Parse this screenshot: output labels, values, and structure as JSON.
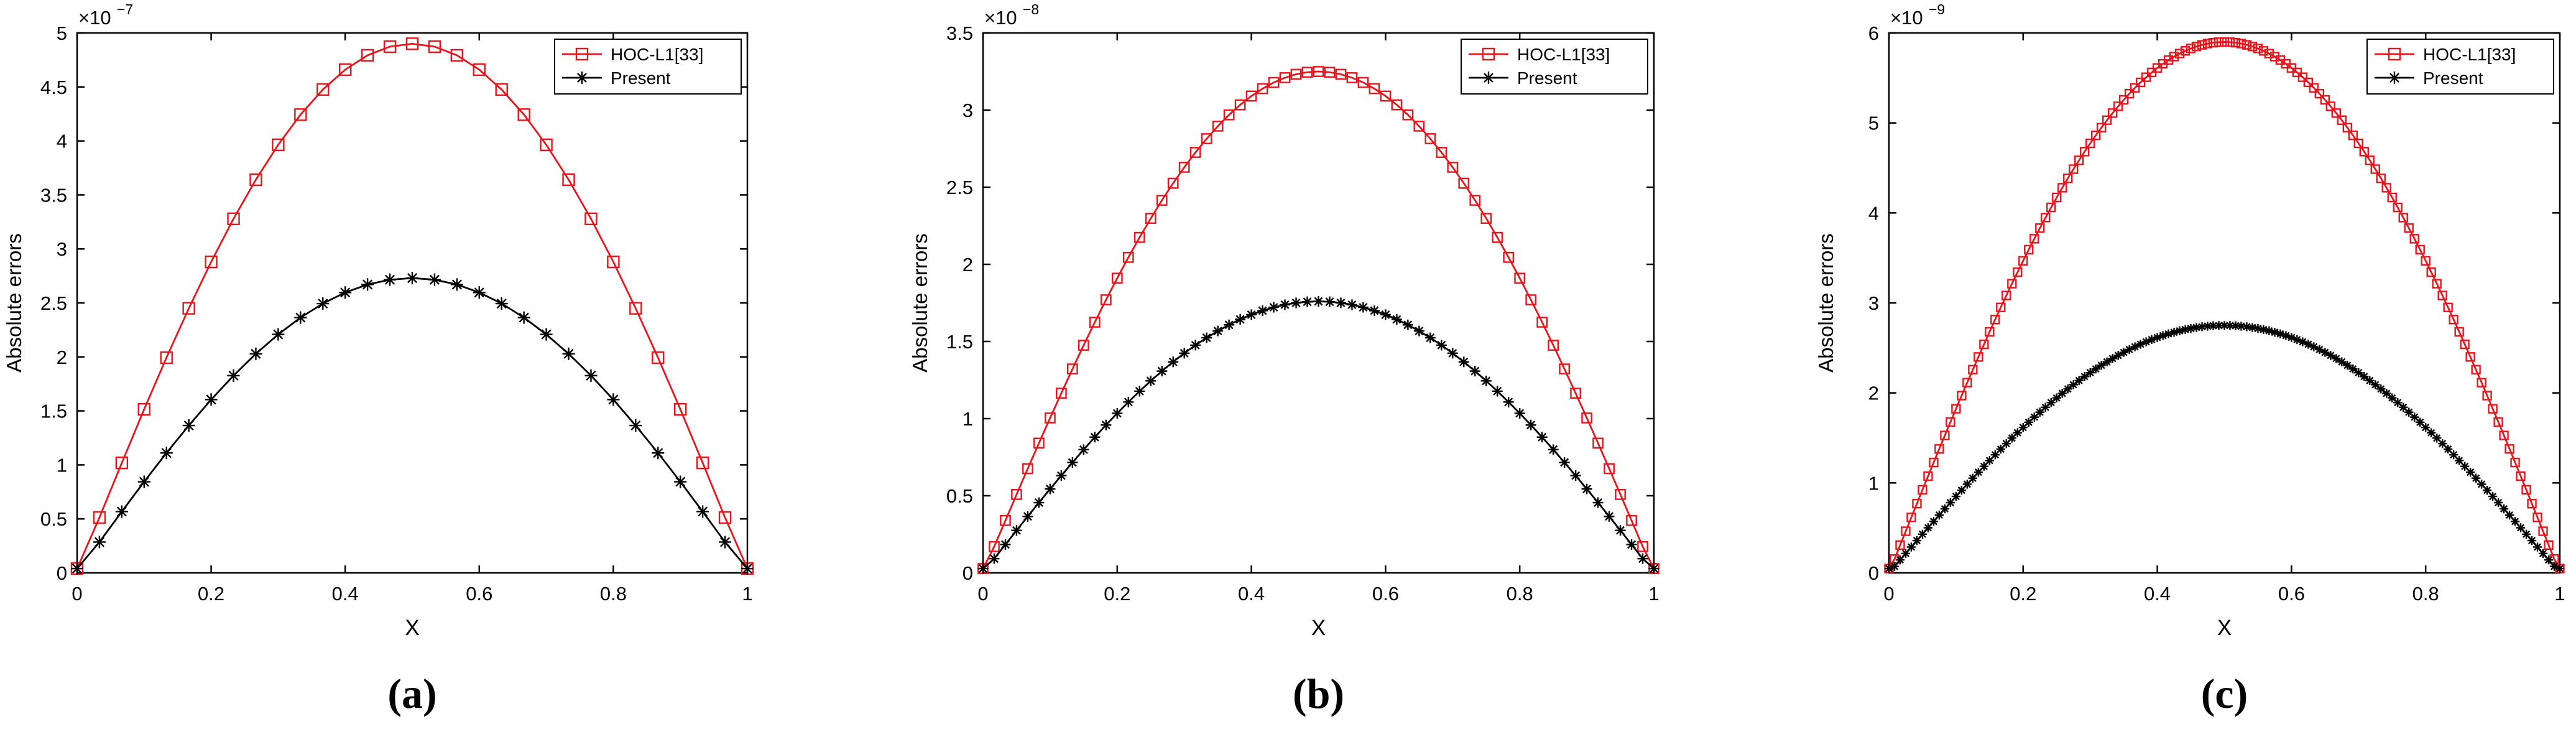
{
  "chart_data": [
    {
      "type": "line",
      "panel_label": "(a)",
      "xlabel": "X",
      "ylabel": "Absolute errors",
      "xlim": [
        0,
        1
      ],
      "ylim": [
        0,
        5
      ],
      "y_multiplier": "×10",
      "y_exponent": "−7",
      "xticks": [
        "0",
        "0.2",
        "0.4",
        "0.6",
        "0.8",
        "1"
      ],
      "yticks": [
        "0",
        "0.5",
        "1",
        "1.5",
        "2",
        "2.5",
        "3",
        "3.5",
        "4",
        "4.5",
        "5"
      ],
      "legend_position": "top-right",
      "n_points": 31,
      "series": [
        {
          "name": "HOC-L1[33]",
          "marker": "square",
          "color": "#e8141c",
          "peak": 4.9
        },
        {
          "name": "Present",
          "marker": "asterisk",
          "color": "#000000",
          "peak": 2.73
        }
      ]
    },
    {
      "type": "line",
      "panel_label": "(b)",
      "xlabel": "X",
      "ylabel": "Absolute errors",
      "xlim": [
        0,
        1
      ],
      "ylim": [
        0,
        3.5
      ],
      "y_multiplier": "×10",
      "y_exponent": "−8",
      "xticks": [
        "0",
        "0.2",
        "0.4",
        "0.6",
        "0.8",
        "1"
      ],
      "yticks": [
        "0",
        "0.5",
        "1",
        "1.5",
        "2",
        "2.5",
        "3",
        "3.5"
      ],
      "legend_position": "top-right",
      "n_points": 61,
      "series": [
        {
          "name": "HOC-L1[33]",
          "marker": "square",
          "color": "#e8141c",
          "peak": 3.25
        },
        {
          "name": "Present",
          "marker": "asterisk",
          "color": "#000000",
          "peak": 1.76
        }
      ]
    },
    {
      "type": "line",
      "panel_label": "(c)",
      "xlabel": "X",
      "ylabel": "Absolute errors",
      "xlim": [
        0,
        1
      ],
      "ylim": [
        0,
        6
      ],
      "y_multiplier": "×10",
      "y_exponent": "−9",
      "xticks": [
        "0",
        "0.2",
        "0.4",
        "0.6",
        "0.8",
        "1"
      ],
      "yticks": [
        "0",
        "1",
        "2",
        "3",
        "4",
        "5",
        "6"
      ],
      "legend_position": "top-right",
      "n_points": 121,
      "series": [
        {
          "name": "HOC-L1[33]",
          "marker": "square",
          "color": "#e8141c",
          "peak": 5.9
        },
        {
          "name": "Present",
          "marker": "asterisk",
          "color": "#000000",
          "peak": 2.75
        }
      ]
    }
  ]
}
